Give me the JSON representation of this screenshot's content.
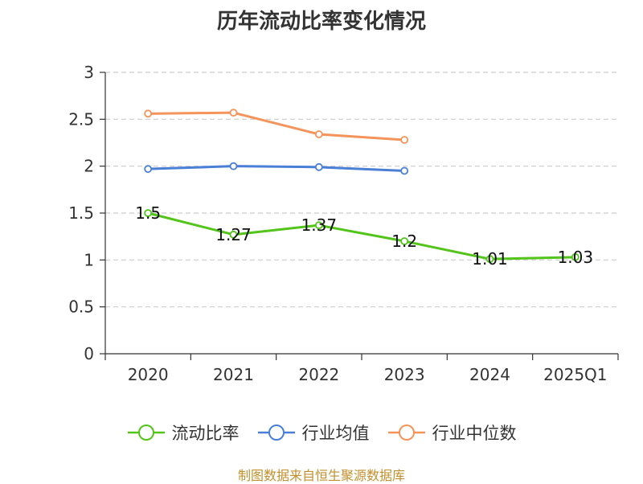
{
  "chart_data": {
    "type": "line",
    "title": "历年流动比率变化情况",
    "categories": [
      "2020",
      "2021",
      "2022",
      "2023",
      "2024",
      "2025Q1"
    ],
    "ylim": [
      0,
      3
    ],
    "yticks": [
      "0",
      "0.5",
      "1",
      "1.5",
      "2",
      "2.5",
      "3"
    ],
    "grid": "horizontal-dashed",
    "legend_position": "bottom",
    "series": [
      {
        "name": "流动比率",
        "color": "#52c41a",
        "values": [
          1.5,
          1.27,
          1.37,
          1.2,
          1.01,
          1.03
        ],
        "labels": [
          "1.5",
          "1.27",
          "1.37",
          "1.2",
          "1.01",
          "1.03"
        ]
      },
      {
        "name": "行业均值",
        "color": "#4a7fd6",
        "values": [
          1.97,
          2.0,
          1.99,
          1.95,
          null,
          null
        ]
      },
      {
        "name": "行业中位数",
        "color": "#f4935a",
        "values": [
          2.56,
          2.57,
          2.34,
          2.28,
          null,
          null
        ]
      }
    ]
  },
  "footer": {
    "source": "制图数据来自恒生聚源数据库"
  }
}
